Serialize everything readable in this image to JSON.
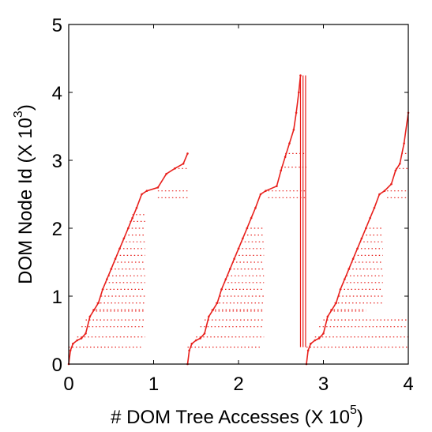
{
  "chart_data": {
    "type": "scatter",
    "xlabel": "# DOM Tree Accesses (X 10",
    "xlabel_exponent": "5",
    "ylabel": "DOM Node Id (X 10",
    "ylabel_exponent": "3",
    "xlim": [
      0,
      4
    ],
    "ylim": [
      0,
      5
    ],
    "x_ticks": [
      "0",
      "1",
      "2",
      "3",
      "4"
    ],
    "y_ticks": [
      "0",
      "1",
      "2",
      "3",
      "4",
      "5"
    ],
    "grid": false,
    "color": "#e8201c",
    "series": [
      {
        "staircase_points": [
          [
            0.0,
            0.0
          ],
          [
            0.02,
            0.2
          ],
          [
            0.05,
            0.3
          ],
          [
            0.1,
            0.35
          ],
          [
            0.15,
            0.38
          ],
          [
            0.2,
            0.45
          ],
          [
            0.25,
            0.7
          ],
          [
            0.3,
            0.8
          ],
          [
            0.35,
            0.9
          ],
          [
            0.4,
            1.1
          ],
          [
            0.45,
            1.25
          ],
          [
            0.5,
            1.4
          ],
          [
            0.55,
            1.55
          ],
          [
            0.6,
            1.7
          ],
          [
            0.65,
            1.85
          ],
          [
            0.7,
            2.0
          ],
          [
            0.75,
            2.15
          ],
          [
            0.8,
            2.3
          ],
          [
            0.86,
            2.5
          ],
          [
            0.92,
            2.55
          ],
          [
            1.05,
            2.6
          ],
          [
            1.15,
            2.8
          ],
          [
            1.25,
            2.88
          ],
          [
            1.35,
            2.95
          ],
          [
            1.4,
            3.1
          ]
        ],
        "bands": [
          {
            "y": 0.25,
            "x": [
              0.0,
              0.85
            ]
          },
          {
            "y": 0.4,
            "x": [
              0.1,
              0.9
            ]
          },
          {
            "y": 0.55,
            "x": [
              0.15,
              0.9
            ]
          },
          {
            "y": 0.65,
            "x": [
              0.2,
              0.9
            ]
          },
          {
            "y": 0.78,
            "x": [
              0.28,
              0.9
            ]
          },
          {
            "y": 0.8,
            "x": [
              0.28,
              0.9
            ]
          },
          {
            "y": 0.9,
            "x": [
              0.33,
              0.9
            ]
          },
          {
            "y": 1.0,
            "x": [
              0.38,
              0.9
            ]
          },
          {
            "y": 1.1,
            "x": [
              0.4,
              0.9
            ]
          },
          {
            "y": 1.2,
            "x": [
              0.43,
              0.9
            ]
          },
          {
            "y": 1.3,
            "x": [
              0.47,
              0.9
            ]
          },
          {
            "y": 1.4,
            "x": [
              0.5,
              0.9
            ]
          },
          {
            "y": 1.5,
            "x": [
              0.53,
              0.9
            ]
          },
          {
            "y": 1.6,
            "x": [
              0.56,
              0.9
            ]
          },
          {
            "y": 1.7,
            "x": [
              0.6,
              0.9
            ]
          },
          {
            "y": 1.8,
            "x": [
              0.63,
              0.9
            ]
          },
          {
            "y": 1.9,
            "x": [
              0.66,
              0.9
            ]
          },
          {
            "y": 2.0,
            "x": [
              0.7,
              0.9
            ]
          },
          {
            "y": 2.1,
            "x": [
              0.72,
              0.9
            ]
          },
          {
            "y": 2.2,
            "x": [
              0.75,
              0.9
            ]
          },
          {
            "y": 2.45,
            "x": [
              1.05,
              1.4
            ]
          },
          {
            "y": 2.55,
            "x": [
              1.05,
              1.4
            ]
          },
          {
            "y": 2.88,
            "x": [
              1.25,
              1.4
            ]
          }
        ]
      },
      {
        "staircase_points": [
          [
            1.4,
            0.0
          ],
          [
            1.42,
            0.2
          ],
          [
            1.45,
            0.3
          ],
          [
            1.5,
            0.35
          ],
          [
            1.55,
            0.38
          ],
          [
            1.6,
            0.45
          ],
          [
            1.65,
            0.7
          ],
          [
            1.7,
            0.8
          ],
          [
            1.75,
            0.9
          ],
          [
            1.8,
            1.1
          ],
          [
            1.85,
            1.25
          ],
          [
            1.9,
            1.4
          ],
          [
            1.95,
            1.55
          ],
          [
            2.0,
            1.7
          ],
          [
            2.05,
            1.85
          ],
          [
            2.1,
            2.0
          ],
          [
            2.15,
            2.15
          ],
          [
            2.2,
            2.3
          ],
          [
            2.26,
            2.5
          ],
          [
            2.32,
            2.55
          ],
          [
            2.45,
            2.62
          ],
          [
            2.5,
            2.85
          ],
          [
            2.55,
            3.05
          ],
          [
            2.6,
            3.25
          ],
          [
            2.65,
            3.45
          ],
          [
            2.68,
            3.7
          ],
          [
            2.71,
            4.0
          ],
          [
            2.73,
            4.25
          ]
        ],
        "bands": [
          {
            "y": 0.25,
            "x": [
              1.4,
              2.25
            ]
          },
          {
            "y": 0.4,
            "x": [
              1.5,
              2.3
            ]
          },
          {
            "y": 0.55,
            "x": [
              1.55,
              2.3
            ]
          },
          {
            "y": 0.65,
            "x": [
              1.6,
              2.3
            ]
          },
          {
            "y": 0.78,
            "x": [
              1.68,
              2.3
            ]
          },
          {
            "y": 0.8,
            "x": [
              1.68,
              2.3
            ]
          },
          {
            "y": 0.9,
            "x": [
              1.73,
              2.3
            ]
          },
          {
            "y": 1.0,
            "x": [
              1.78,
              2.3
            ]
          },
          {
            "y": 1.1,
            "x": [
              1.8,
              2.3
            ]
          },
          {
            "y": 1.2,
            "x": [
              1.83,
              2.3
            ]
          },
          {
            "y": 1.3,
            "x": [
              1.87,
              2.3
            ]
          },
          {
            "y": 1.4,
            "x": [
              1.9,
              2.3
            ]
          },
          {
            "y": 1.5,
            "x": [
              1.93,
              2.3
            ]
          },
          {
            "y": 1.6,
            "x": [
              1.96,
              2.3
            ]
          },
          {
            "y": 1.7,
            "x": [
              2.0,
              2.3
            ]
          },
          {
            "y": 1.8,
            "x": [
              2.03,
              2.3
            ]
          },
          {
            "y": 1.9,
            "x": [
              2.06,
              2.3
            ]
          },
          {
            "y": 2.0,
            "x": [
              2.1,
              2.3
            ]
          },
          {
            "y": 2.45,
            "x": [
              2.35,
              2.8
            ]
          },
          {
            "y": 2.55,
            "x": [
              2.35,
              2.8
            ]
          },
          {
            "y": 2.9,
            "x": [
              2.5,
              2.8
            ]
          },
          {
            "y": 3.1,
            "x": [
              2.55,
              2.8
            ]
          }
        ]
      },
      {
        "staircase_points": [
          [
            2.8,
            0.0
          ],
          [
            2.82,
            0.2
          ],
          [
            2.85,
            0.3
          ],
          [
            2.9,
            0.35
          ],
          [
            2.95,
            0.38
          ],
          [
            3.0,
            0.45
          ],
          [
            3.05,
            0.7
          ],
          [
            3.1,
            0.8
          ],
          [
            3.15,
            0.9
          ],
          [
            3.2,
            1.1
          ],
          [
            3.25,
            1.25
          ],
          [
            3.3,
            1.4
          ],
          [
            3.35,
            1.55
          ],
          [
            3.4,
            1.7
          ],
          [
            3.45,
            1.85
          ],
          [
            3.5,
            2.0
          ],
          [
            3.55,
            2.15
          ],
          [
            3.6,
            2.3
          ],
          [
            3.66,
            2.5
          ],
          [
            3.72,
            2.55
          ],
          [
            3.8,
            2.65
          ],
          [
            3.85,
            2.85
          ],
          [
            3.9,
            2.95
          ],
          [
            3.95,
            3.25
          ],
          [
            4.0,
            3.7
          ]
        ],
        "bands": [
          {
            "y": 0.25,
            "x": [
              2.8,
              4.0
            ]
          },
          {
            "y": 0.4,
            "x": [
              2.9,
              4.0
            ]
          },
          {
            "y": 0.55,
            "x": [
              2.95,
              4.0
            ]
          },
          {
            "y": 0.65,
            "x": [
              3.0,
              4.0
            ]
          },
          {
            "y": 0.78,
            "x": [
              3.08,
              3.5
            ]
          },
          {
            "y": 0.8,
            "x": [
              3.08,
              3.5
            ]
          },
          {
            "y": 0.9,
            "x": [
              3.13,
              3.7
            ]
          },
          {
            "y": 1.0,
            "x": [
              3.18,
              3.7
            ]
          },
          {
            "y": 1.1,
            "x": [
              3.2,
              3.7
            ]
          },
          {
            "y": 1.2,
            "x": [
              3.23,
              3.7
            ]
          },
          {
            "y": 1.3,
            "x": [
              3.27,
              3.7
            ]
          },
          {
            "y": 1.4,
            "x": [
              3.3,
              3.7
            ]
          },
          {
            "y": 1.5,
            "x": [
              3.33,
              3.7
            ]
          },
          {
            "y": 1.6,
            "x": [
              3.36,
              3.7
            ]
          },
          {
            "y": 1.7,
            "x": [
              3.4,
              3.7
            ]
          },
          {
            "y": 1.8,
            "x": [
              3.43,
              3.7
            ]
          },
          {
            "y": 1.9,
            "x": [
              3.46,
              3.7
            ]
          },
          {
            "y": 2.0,
            "x": [
              3.5,
              3.7
            ]
          },
          {
            "y": 2.45,
            "x": [
              3.75,
              4.0
            ]
          },
          {
            "y": 2.55,
            "x": [
              3.75,
              4.0
            ]
          },
          {
            "y": 2.88,
            "x": [
              3.85,
              4.0
            ]
          },
          {
            "y": 3.1,
            "x": [
              3.92,
              4.0
            ]
          }
        ]
      }
    ],
    "vertical_lines": [
      {
        "x": 2.73,
        "y": [
          0.25,
          4.25
        ]
      },
      {
        "x": 2.76,
        "y": [
          0.25,
          4.25
        ]
      },
      {
        "x": 2.79,
        "y": [
          0.25,
          4.25
        ]
      }
    ]
  }
}
